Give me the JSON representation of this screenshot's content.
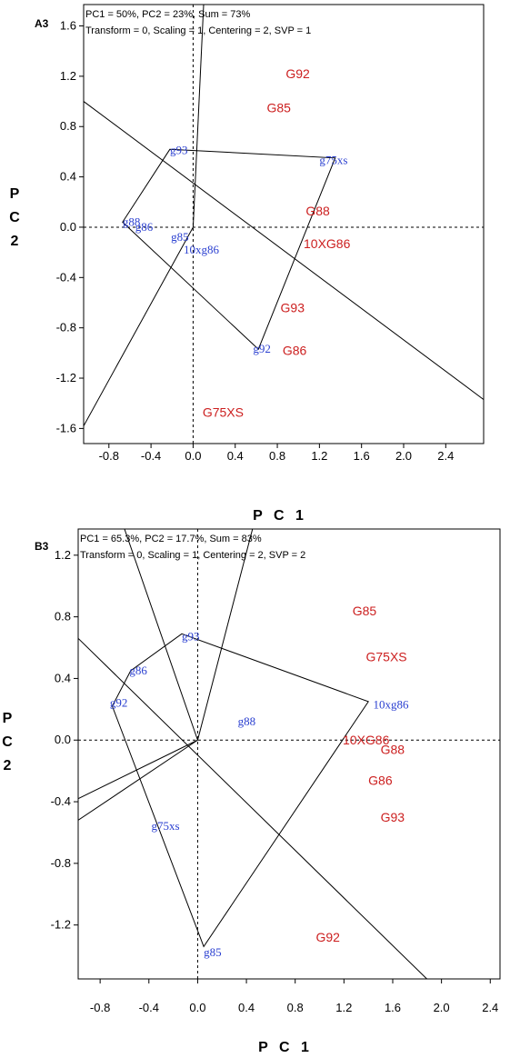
{
  "chart_data": [
    {
      "type": "scatter",
      "panel_label": "A3",
      "info_lines": [
        "PC1 = 50%, PC2 = 23%, Sum = 73%",
        "Transform = 0, Scaling = 1, Centering = 2, SVP = 1"
      ],
      "xlabel": "P C 1",
      "ylabel_letters": [
        "P",
        "C",
        "2"
      ],
      "xlim": [
        -1.04,
        2.76
      ],
      "ylim": [
        -1.72,
        1.77
      ],
      "x_ticks": [
        "-0.8",
        "-0.4",
        "0.0",
        "0.4",
        "0.8",
        "1.2",
        "1.6",
        "2.0",
        "2.4"
      ],
      "y_ticks": [
        "1.6",
        "1.2",
        "0.8",
        "0.4",
        "0.0",
        "-0.4",
        "-0.8",
        "-1.2",
        "-1.6"
      ],
      "entries": [
        {
          "label": "G92",
          "x": 0.88,
          "y": 1.22
        },
        {
          "label": "G85",
          "x": 0.7,
          "y": 0.95
        },
        {
          "label": "G88",
          "x": 1.07,
          "y": 0.13
        },
        {
          "label": "10XG86",
          "x": 1.05,
          "y": -0.13
        },
        {
          "label": "G93",
          "x": 0.83,
          "y": -0.64
        },
        {
          "label": "G86",
          "x": 0.85,
          "y": -0.98
        },
        {
          "label": "G75XS",
          "x": 0.09,
          "y": -1.47
        }
      ],
      "testers": [
        {
          "label": "g93",
          "x": -0.22,
          "y": 0.61
        },
        {
          "label": "g75xs",
          "x": 1.2,
          "y": 0.53
        },
        {
          "label": "g88",
          "x": -0.67,
          "y": 0.04
        },
        {
          "label": "g86",
          "x": -0.55,
          "y": 0.0
        },
        {
          "label": "g85",
          "x": -0.21,
          "y": -0.08
        },
        {
          "label": "10xg86",
          "x": -0.09,
          "y": -0.18
        },
        {
          "label": "g92",
          "x": 0.57,
          "y": -0.97
        }
      ],
      "hull": [
        [
          -0.22,
          0.62
        ],
        [
          1.35,
          0.55
        ],
        [
          0.62,
          -0.97
        ],
        [
          -0.67,
          0.04
        ]
      ],
      "rays": [
        [
          [
            0.0,
            0.0
          ],
          [
            -1.04,
            -1.58
          ]
        ],
        [
          [
            0.0,
            0.0
          ],
          [
            0.1,
            1.77
          ]
        ],
        [
          [
            -1.04,
            1.0
          ],
          [
            2.76,
            -1.37
          ]
        ]
      ]
    },
    {
      "type": "scatter",
      "panel_label": "B3",
      "info_lines": [
        "PC1 = 65.3%, PC2 = 17.7%, Sum = 83%",
        "Transform = 0, Scaling = 1, Centering = 2, SVP = 2"
      ],
      "xlabel": "P C 1",
      "ylabel_letters": [
        "P",
        "C",
        "2"
      ],
      "xlim": [
        -0.98,
        2.48
      ],
      "ylim": [
        -1.55,
        1.37
      ],
      "x_ticks": [
        "-0.8",
        "-0.4",
        "0.0",
        "0.4",
        "0.8",
        "1.2",
        "1.6",
        "2.0",
        "2.4"
      ],
      "y_ticks": [
        "1.2",
        "0.8",
        "0.4",
        "0.0",
        "-0.4",
        "-0.8",
        "-1.2"
      ],
      "entries": [
        {
          "label": "G85",
          "x": 1.27,
          "y": 0.84
        },
        {
          "label": "G75XS",
          "x": 1.38,
          "y": 0.54
        },
        {
          "label": "10XG86",
          "x": 1.19,
          "y": 0.0
        },
        {
          "label": "G88",
          "x": 1.5,
          "y": -0.06
        },
        {
          "label": "G86",
          "x": 1.4,
          "y": -0.26
        },
        {
          "label": "G93",
          "x": 1.5,
          "y": -0.5
        },
        {
          "label": "G92",
          "x": 0.97,
          "y": -1.28
        }
      ],
      "testers": [
        {
          "label": "g93",
          "x": -0.13,
          "y": 0.67
        },
        {
          "label": "g86",
          "x": -0.56,
          "y": 0.45
        },
        {
          "label": "g92",
          "x": -0.72,
          "y": 0.24
        },
        {
          "label": "g88",
          "x": 0.33,
          "y": 0.12
        },
        {
          "label": "10xg86",
          "x": 1.44,
          "y": 0.23
        },
        {
          "label": "g75xs",
          "x": -0.38,
          "y": -0.56
        },
        {
          "label": "g85",
          "x": 0.05,
          "y": -1.38
        }
      ],
      "hull": [
        [
          -0.13,
          0.69
        ],
        [
          1.4,
          0.25
        ],
        [
          0.05,
          -1.34
        ],
        [
          -0.7,
          0.22
        ],
        [
          -0.55,
          0.45
        ]
      ],
      "rays": [
        [
          [
            0.0,
            0.0
          ],
          [
            -0.98,
            -0.38
          ]
        ],
        [
          [
            0.0,
            0.0
          ],
          [
            -0.98,
            -0.52
          ]
        ],
        [
          [
            0.0,
            0.0
          ],
          [
            -0.6,
            1.37
          ]
        ],
        [
          [
            0.0,
            0.0
          ],
          [
            0.45,
            1.37
          ]
        ],
        [
          [
            -0.98,
            0.66
          ],
          [
            1.88,
            -1.55
          ]
        ]
      ]
    }
  ]
}
